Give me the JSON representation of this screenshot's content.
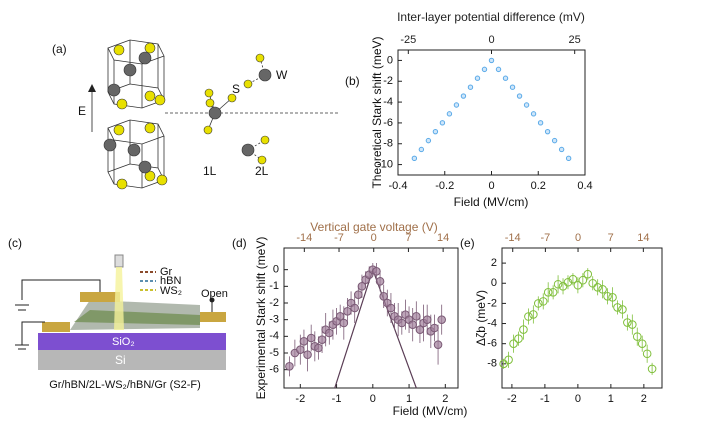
{
  "panel_labels": [
    "(a)",
    "(b)",
    "(c)",
    "(d)",
    "(e)"
  ],
  "diagram_a": {
    "field_label": "E",
    "atom_labels": [
      "S",
      "W"
    ],
    "layer_labels": [
      "1L",
      "2L"
    ]
  },
  "diagram_c": {
    "legend": [
      "Gr",
      "hBN",
      "WS₂"
    ],
    "open_label": "Open",
    "substrate": [
      "SiO₂",
      "Si"
    ],
    "caption": "Gr/hBN/2L-WS₂/hBN/Gr (S2-F)"
  },
  "chart_data": [
    {
      "type": "scatter",
      "xlabel": "Field (MV/cm)",
      "x2label": "Inter-layer potential difference (mV)",
      "ylabel": "Theoretical Stark shift (meV)",
      "x": [
        -0.33,
        -0.3,
        -0.27,
        -0.24,
        -0.21,
        -0.18,
        -0.15,
        -0.12,
        -0.09,
        -0.06,
        -0.03,
        0,
        0.03,
        0.06,
        0.09,
        0.12,
        0.15,
        0.18,
        0.21,
        0.24,
        0.27,
        0.3,
        0.33
      ],
      "values": [
        -9.4,
        -8.55,
        -7.7,
        -6.84,
        -5.99,
        -5.13,
        -4.28,
        -3.42,
        -2.57,
        -1.71,
        -0.86,
        0,
        -0.86,
        -1.71,
        -2.57,
        -3.42,
        -4.28,
        -5.13,
        -5.99,
        -6.84,
        -7.7,
        -8.55,
        -9.4
      ],
      "color": "#5aaae8",
      "marker": "hollow",
      "xlim": [
        -0.4,
        0.4
      ],
      "xticks": [
        -0.4,
        -0.2,
        0,
        0.2,
        0.4
      ],
      "x2lim": [
        -28.1,
        28.1
      ],
      "x2ticks": [
        -25,
        0,
        25
      ],
      "x2color": "#222222",
      "ylim": [
        -11,
        1
      ],
      "yticks": [
        0,
        -2,
        -4,
        -6,
        -8,
        -10
      ]
    },
    {
      "type": "errorscatter",
      "xlabel": "Field (MV/cm)",
      "x2label": "Vertical gate voltage (V)",
      "ylabel": "Experimental Stark shift (meV)",
      "x": [
        -2.3,
        -2.15,
        -2.0,
        -1.9,
        -1.8,
        -1.7,
        -1.6,
        -1.5,
        -1.4,
        -1.3,
        -1.2,
        -1.1,
        -1.0,
        -0.9,
        -0.8,
        -0.7,
        -0.6,
        -0.5,
        -0.4,
        -0.3,
        -0.2,
        -0.1,
        0,
        0.1,
        0.2,
        0.3,
        0.4,
        0.5,
        0.6,
        0.7,
        0.8,
        0.9,
        1.0,
        1.1,
        1.2,
        1.3,
        1.4,
        1.5,
        1.6,
        1.7,
        1.8,
        1.9
      ],
      "values": [
        -5.8,
        -5.0,
        -4.8,
        -4.3,
        -5.1,
        -4.1,
        -4.6,
        -4.7,
        -4.2,
        -3.6,
        -3.8,
        -3.3,
        -3.1,
        -2.8,
        -3.2,
        -2.5,
        -2.0,
        -2.3,
        -1.5,
        -1.0,
        -0.6,
        -0.3,
        0.0,
        -0.1,
        -0.7,
        -1.6,
        -2.0,
        -2.3,
        -2.8,
        -3.0,
        -3.2,
        -2.7,
        -3.0,
        -3.3,
        -2.8,
        -3.6,
        -3.2,
        -3.0,
        -3.7,
        -3.5,
        -4.5,
        -3.0
      ],
      "errors": [
        0.6,
        0.8,
        0.9,
        0.7,
        1.0,
        0.8,
        0.9,
        0.7,
        0.8,
        1.0,
        0.7,
        0.9,
        0.8,
        0.7,
        1.0,
        0.8,
        0.7,
        0.9,
        0.6,
        0.7,
        0.5,
        0.5,
        0.4,
        0.5,
        0.6,
        0.7,
        0.8,
        0.9,
        0.8,
        1.0,
        0.7,
        0.9,
        0.8,
        1.0,
        0.9,
        0.8,
        1.1,
        0.9,
        1.0,
        0.8,
        1.2,
        0.9
      ],
      "color": "#a07e9a",
      "edge": "#7a5a75",
      "line": {
        "x": [
          -1.05,
          0,
          1.2
        ],
        "values": [
          -7.1,
          0,
          -7.1
        ],
        "color": "#5a3d55"
      },
      "xlim": [
        -2.45,
        2.35
      ],
      "xticks": [
        -2,
        -1,
        0,
        1,
        2
      ],
      "x2lim": [
        -18.1,
        17.0
      ],
      "x2ticks": [
        -14,
        -7,
        0,
        7,
        14
      ],
      "x2color": "#a0704a",
      "ylim": [
        -7.1,
        1.3
      ],
      "yticks": [
        0,
        -1,
        -2,
        -3,
        -4,
        -5,
        -6
      ]
    },
    {
      "type": "errorscatter",
      "ylabel": "Δζb (meV)",
      "x": [
        -2.25,
        -2.1,
        -1.95,
        -1.8,
        -1.65,
        -1.5,
        -1.35,
        -1.2,
        -1.05,
        -0.9,
        -0.75,
        -0.6,
        -0.45,
        -0.3,
        -0.15,
        0,
        0.15,
        0.3,
        0.45,
        0.6,
        0.75,
        0.9,
        1.05,
        1.2,
        1.35,
        1.5,
        1.65,
        1.8,
        1.95,
        2.1,
        2.25
      ],
      "values": [
        -8.0,
        -7.6,
        -6.0,
        -5.5,
        -4.6,
        -3.3,
        -3.1,
        -2.0,
        -1.8,
        -0.9,
        -0.9,
        -0.1,
        -0.3,
        0.1,
        0.4,
        -0.2,
        0.3,
        0.9,
        0.0,
        -0.4,
        -0.6,
        -1.3,
        -1.4,
        -2.4,
        -2.6,
        -3.9,
        -4.1,
        -5.3,
        -6.0,
        -7.0,
        -8.5
      ],
      "errors": [
        0.5,
        0.8,
        0.9,
        0.7,
        1.0,
        0.8,
        0.9,
        0.7,
        0.8,
        1.0,
        0.7,
        0.9,
        0.8,
        0.7,
        0.6,
        0.8,
        0.7,
        0.6,
        0.7,
        0.8,
        0.9,
        0.8,
        1.0,
        0.7,
        0.9,
        0.8,
        1.0,
        0.9,
        0.8,
        0.9,
        0.6
      ],
      "color": "none",
      "edge": "#7fbf3a",
      "xlim": [
        -2.3,
        2.55
      ],
      "xticks": [
        -2,
        -1,
        0,
        1,
        2
      ],
      "x2lim": [
        -16.3,
        18.0
      ],
      "x2ticks": [
        -14,
        -7,
        0,
        7,
        14
      ],
      "x2color": "#a0704a",
      "ylim": [
        -10.4,
        3.5
      ],
      "yticks": [
        2,
        0,
        -2,
        -4,
        -6,
        -8
      ]
    }
  ]
}
